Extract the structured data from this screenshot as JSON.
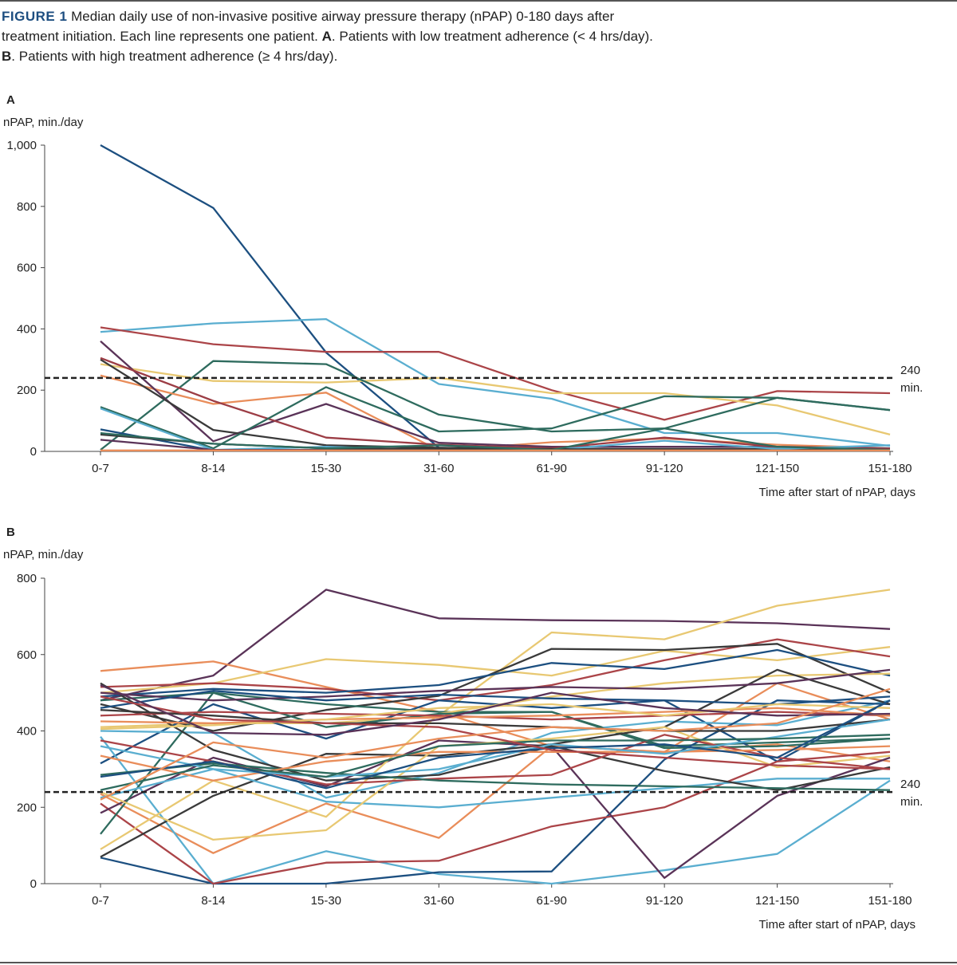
{
  "figure": {
    "label": "FIGURE 1",
    "text_1": " Median daily use of non-invasive positive airway pressure therapy (nPAP) 0-180 days after treatment initiation. Each line represents one patient. ",
    "panel_a_ref": "A",
    "text_2": ". Patients with low treatment adherence (< 4 hrs/day). ",
    "panel_b_ref": "B",
    "text_3": ". Patients with high treatment adherence (≥ 4 hrs/day)."
  },
  "chart_data": [
    {
      "type": "line",
      "panel": "A",
      "ylabel": "nPAP, min./day",
      "xlabel": "Time after start of nPAP, days",
      "categories": [
        "0-7",
        "8-14",
        "15-30",
        "31-60",
        "61-90",
        "91-120",
        "121-150",
        "151-180"
      ],
      "ylim": [
        0,
        1000
      ],
      "yticks": [
        0,
        200,
        400,
        600,
        800,
        1000
      ],
      "ytick_labels": [
        "0",
        "200",
        "400",
        "600",
        "800",
        "1,000"
      ],
      "reference_line": {
        "value": 240,
        "label_1": "240",
        "label_2": "min."
      },
      "series": [
        {
          "color": "#1c4f80",
          "values": [
            1000,
            795,
            323,
            12,
            3,
            3,
            3,
            3
          ]
        },
        {
          "color": "#5aaed0",
          "values": [
            390,
            418,
            432,
            220,
            172,
            60,
            60,
            18
          ]
        },
        {
          "color": "#ab4448",
          "values": [
            405,
            350,
            325,
            325,
            200,
            103,
            197,
            190
          ]
        },
        {
          "color": "#e8c872",
          "values": [
            285,
            230,
            225,
            240,
            190,
            190,
            150,
            55
          ]
        },
        {
          "color": "#2e6b5e",
          "values": [
            5,
            295,
            285,
            120,
            65,
            75,
            175,
            135
          ]
        },
        {
          "color": "#e98d5a",
          "values": [
            248,
            155,
            192,
            3,
            30,
            42,
            22,
            10
          ]
        },
        {
          "color": "#5a3358",
          "values": [
            360,
            33,
            155,
            28,
            15,
            15,
            15,
            10
          ]
        },
        {
          "color": "#3a3a3a",
          "values": [
            300,
            70,
            20,
            12,
            8,
            8,
            8,
            8
          ]
        },
        {
          "color": "#9c3d45",
          "values": [
            305,
            165,
            45,
            22,
            10,
            45,
            15,
            8
          ]
        },
        {
          "color": "#2e6b5e",
          "values": [
            145,
            10,
            210,
            65,
            75,
            180,
            175,
            135
          ]
        },
        {
          "color": "#5aaed0",
          "values": [
            140,
            5,
            15,
            3,
            5,
            35,
            8,
            20
          ]
        },
        {
          "color": "#1c4f80",
          "values": [
            72,
            3,
            3,
            3,
            3,
            3,
            3,
            3
          ]
        },
        {
          "color": "#5a3358",
          "values": [
            38,
            5,
            5,
            3,
            3,
            3,
            3,
            3
          ]
        },
        {
          "color": "#3a3a3a",
          "values": [
            55,
            25,
            10,
            8,
            8,
            3,
            3,
            3
          ]
        },
        {
          "color": "#2e6b5e",
          "values": [
            60,
            25,
            10,
            20,
            5,
            75,
            15,
            5
          ]
        },
        {
          "color": "#e98d5a",
          "values": [
            3,
            3,
            3,
            3,
            3,
            3,
            3,
            3
          ]
        }
      ]
    },
    {
      "type": "line",
      "panel": "B",
      "ylabel": "nPAP, min./day",
      "xlabel": "Time after start of nPAP, days",
      "categories": [
        "0-7",
        "8-14",
        "15-30",
        "31-60",
        "61-90",
        "91-120",
        "121-150",
        "151-180"
      ],
      "ylim": [
        0,
        800
      ],
      "yticks": [
        0,
        200,
        400,
        600,
        800
      ],
      "ytick_labels": [
        "0",
        "200",
        "400",
        "600",
        "800"
      ],
      "reference_line": {
        "value": 240,
        "label_1": "240",
        "label_2": "min."
      },
      "series": [
        {
          "color": "#5a3358",
          "values": [
            480,
            545,
            770,
            695,
            690,
            688,
            682,
            667
          ]
        },
        {
          "color": "#e8c872",
          "values": [
            410,
            420,
            420,
            440,
            658,
            640,
            728,
            770
          ]
        },
        {
          "color": "#e98d5a",
          "values": [
            557,
            582,
            515,
            450,
            360,
            345,
            525,
            430
          ]
        },
        {
          "color": "#e8c872",
          "values": [
            500,
            525,
            588,
            573,
            545,
            610,
            585,
            620
          ]
        },
        {
          "color": "#ab4448",
          "values": [
            515,
            525,
            510,
            480,
            520,
            585,
            640,
            595
          ]
        },
        {
          "color": "#3a3a3a",
          "values": [
            470,
            400,
            455,
            492,
            615,
            612,
            628,
            500
          ]
        },
        {
          "color": "#1c4f80",
          "values": [
            490,
            510,
            500,
            520,
            578,
            562,
            612,
            545
          ]
        },
        {
          "color": "#2e6b5e",
          "values": [
            480,
            500,
            470,
            450,
            450,
            360,
            370,
            380
          ]
        },
        {
          "color": "#1c4f80",
          "values": [
            315,
            470,
            380,
            480,
            460,
            480,
            320,
            480
          ]
        },
        {
          "color": "#5aaed0",
          "values": [
            400,
            395,
            225,
            290,
            395,
            425,
            415,
            480
          ]
        },
        {
          "color": "#e98d5a",
          "values": [
            235,
            80,
            210,
            120,
            360,
            345,
            365,
            320
          ]
        },
        {
          "color": "#5aaed0",
          "values": [
            385,
            0,
            85,
            25,
            0,
            35,
            78,
            270
          ]
        },
        {
          "color": "#1c4f80",
          "values": [
            68,
            0,
            0,
            30,
            32,
            325,
            480,
            470
          ]
        },
        {
          "color": "#ab4448",
          "values": [
            210,
            0,
            55,
            60,
            150,
            200,
            320,
            345
          ]
        },
        {
          "color": "#5a3358",
          "values": [
            185,
            330,
            255,
            375,
            360,
            15,
            230,
            330
          ]
        },
        {
          "color": "#e8c872",
          "values": [
            90,
            270,
            175,
            445,
            490,
            525,
            545,
            550
          ]
        },
        {
          "color": "#2e6b5e",
          "values": [
            130,
            500,
            410,
            445,
            450,
            355,
            360,
            380
          ]
        },
        {
          "color": "#3a3a3a",
          "values": [
            70,
            230,
            340,
            335,
            365,
            410,
            560,
            470
          ]
        },
        {
          "color": "#5aaed0",
          "values": [
            225,
            300,
            215,
            200,
            225,
            250,
            275,
            275
          ]
        },
        {
          "color": "#e8c872",
          "values": [
            240,
            115,
            140,
            360,
            380,
            410,
            305,
            335
          ]
        },
        {
          "color": "#3a3a3a",
          "values": [
            525,
            350,
            270,
            285,
            360,
            295,
            245,
            305
          ]
        },
        {
          "color": "#ab4448",
          "values": [
            375,
            320,
            260,
            275,
            285,
            390,
            330,
            300
          ]
        },
        {
          "color": "#2e6b5e",
          "values": [
            285,
            315,
            290,
            270,
            260,
            255,
            250,
            245
          ]
        },
        {
          "color": "#e98d5a",
          "values": [
            335,
            270,
            320,
            345,
            345,
            345,
            350,
            360
          ]
        },
        {
          "color": "#5a3358",
          "values": [
            500,
            480,
            490,
            505,
            515,
            510,
            525,
            560
          ]
        },
        {
          "color": "#1c4f80",
          "values": [
            460,
            505,
            480,
            495,
            485,
            480,
            470,
            490
          ]
        },
        {
          "color": "#ab4448",
          "values": [
            440,
            450,
            445,
            440,
            430,
            440,
            450,
            440
          ]
        },
        {
          "color": "#e98d5a",
          "values": [
            425,
            420,
            430,
            435,
            440,
            450,
            460,
            440
          ]
        },
        {
          "color": "#3a3a3a",
          "values": [
            455,
            440,
            420,
            420,
            410,
            400,
            400,
            430
          ]
        },
        {
          "color": "#e8c872",
          "values": [
            405,
            415,
            430,
            460,
            470,
            440,
            470,
            460
          ]
        },
        {
          "color": "#5aaed0",
          "values": [
            360,
            300,
            280,
            300,
            365,
            340,
            385,
            430
          ]
        },
        {
          "color": "#2e6b5e",
          "values": [
            245,
            310,
            280,
            360,
            375,
            375,
            380,
            390
          ]
        },
        {
          "color": "#1c4f80",
          "values": [
            280,
            320,
            250,
            330,
            355,
            365,
            330,
            480
          ]
        },
        {
          "color": "#ab4448",
          "values": [
            490,
            430,
            420,
            410,
            350,
            330,
            310,
            300
          ]
        },
        {
          "color": "#5a3358",
          "values": [
            520,
            395,
            390,
            430,
            500,
            460,
            440,
            445
          ]
        },
        {
          "color": "#e98d5a",
          "values": [
            220,
            370,
            330,
            380,
            410,
            400,
            420,
            510
          ]
        }
      ]
    }
  ]
}
